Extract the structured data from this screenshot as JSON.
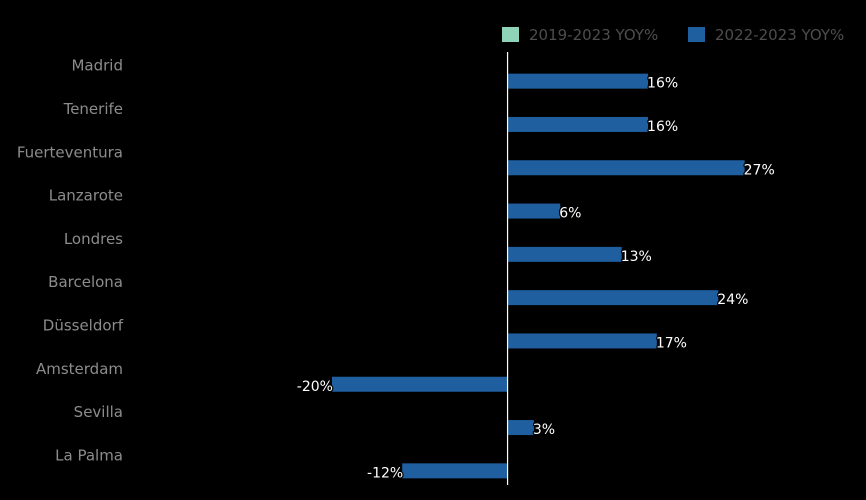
{
  "chart_data": {
    "type": "bar",
    "orientation": "horizontal",
    "categories": [
      "Madrid",
      "Tenerife",
      "Fuerteventura",
      "Lanzarote",
      "Londres",
      "Barcelona",
      "Düsseldorf",
      "Amsterdam",
      "Sevilla",
      "La Palma"
    ],
    "series": [
      {
        "name": "2019-2023 YOY%",
        "color": "#8fd3b8",
        "values": [
          null,
          null,
          null,
          null,
          null,
          null,
          null,
          null,
          null,
          null
        ],
        "labels": [
          "",
          "",
          "",
          "",
          "",
          "",
          "",
          "",
          "",
          ""
        ]
      },
      {
        "name": "2022-2023 YOY%",
        "color": "#1f5fa0",
        "values": [
          16,
          16,
          27,
          6,
          13,
          24,
          17,
          -20,
          3,
          -12
        ],
        "labels": [
          "16%",
          "16%",
          "27%",
          "6%",
          "13%",
          "24%",
          "17%",
          "-20%",
          "3%",
          "-12%"
        ]
      }
    ],
    "xlim": [
      -43,
      39
    ],
    "grid": false,
    "legend_position": "top-right",
    "background": "#000000",
    "zero_line_color": "#ffffff"
  }
}
